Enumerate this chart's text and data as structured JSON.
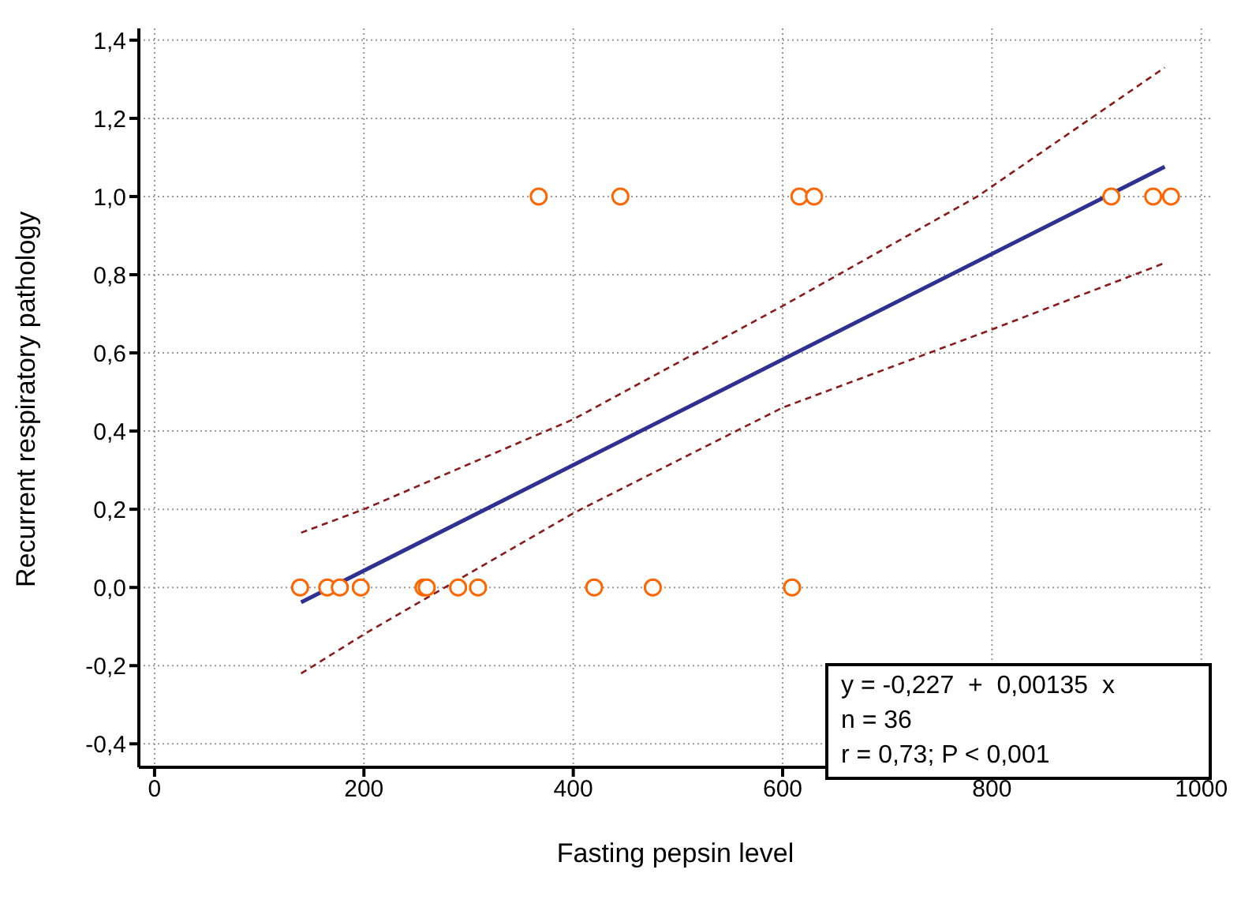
{
  "chart_data": {
    "type": "scatter",
    "xlabel": "Fasting pepsin level",
    "ylabel": "Recurrent respiratory pathology",
    "xlim": [
      -15,
      1010
    ],
    "ylim": [
      -0.46,
      1.43
    ],
    "xticks": [
      0,
      200,
      400,
      600,
      800,
      1000
    ],
    "yticks": [
      {
        "value": -0.4,
        "label": "-0,4"
      },
      {
        "value": -0.2,
        "label": "-0,2"
      },
      {
        "value": 0,
        "label": "0,0"
      },
      {
        "value": 0.2,
        "label": "0,2"
      },
      {
        "value": 0.4,
        "label": "0,4"
      },
      {
        "value": 0.6,
        "label": "0,6"
      },
      {
        "value": 0.8,
        "label": "0,8"
      },
      {
        "value": 1.0,
        "label": "1,0"
      },
      {
        "value": 1.2,
        "label": "1,2"
      },
      {
        "value": 1.4,
        "label": "1,4"
      }
    ],
    "grid": true,
    "legend": false,
    "annotations": [
      "y = -0,227  +  0,00135  x",
      "n = 36",
      "r = 0,73; P < 0,001"
    ],
    "series": [
      {
        "marker": "circle",
        "color": "#ff6600",
        "x": [
          139,
          165,
          177,
          197,
          257,
          260,
          290,
          309,
          420,
          476,
          609,
          367,
          445,
          616,
          630,
          914,
          954,
          971
        ],
        "values": [
          0,
          0,
          0,
          0,
          0,
          0,
          0,
          0,
          0,
          0,
          0,
          1,
          1,
          1,
          1,
          1,
          1,
          1
        ]
      },
      {
        "type": "line",
        "line_style": "dashed",
        "color": "#8b1a1a",
        "x": [
          140,
          200,
          400,
          600,
          786,
          965
        ],
        "values": [
          0.14,
          0.2,
          0.43,
          0.72,
          1.0,
          1.33
        ]
      },
      {
        "type": "line",
        "line_style": "dashed",
        "color": "#8b1a1a",
        "x": [
          140,
          200,
          400,
          600,
          800,
          965
        ],
        "values": [
          -0.22,
          -0.12,
          0.19,
          0.46,
          0.66,
          0.83
        ]
      },
      {
        "type": "line",
        "line_style": "solid",
        "color": "#2e3192",
        "x": [
          140,
          965
        ],
        "values": [
          -0.038,
          1.076
        ]
      }
    ]
  }
}
